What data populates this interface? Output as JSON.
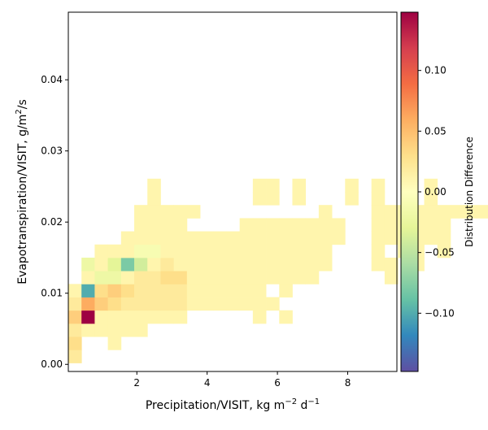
{
  "chart_data": {
    "type": "heatmap",
    "xlabel": "Precipitation/VISIT,  kg m",
    "xlabel_sup1": "−2",
    "xlabel_mid": " d",
    "xlabel_sup2": "−1",
    "ylabel": "Evapotranspiration/VISIT,  g/m",
    "ylabel_sup": "2",
    "ylabel_tail": "/s",
    "colorbar_label": "Distribution Difference",
    "colormap": "Spectral_r",
    "xlim": [
      0.05,
      9.4
    ],
    "ylim": [
      -0.001,
      0.0495
    ],
    "clim": [
      -0.148,
      0.148
    ],
    "xticks": [
      {
        "v": 2,
        "label": "2"
      },
      {
        "v": 4,
        "label": "4"
      },
      {
        "v": 6,
        "label": "6"
      },
      {
        "v": 8,
        "label": "8"
      }
    ],
    "yticks": [
      {
        "v": 0.0,
        "label": "0.00"
      },
      {
        "v": 0.01,
        "label": "0.01"
      },
      {
        "v": 0.02,
        "label": "0.02"
      },
      {
        "v": 0.03,
        "label": "0.03"
      },
      {
        "v": 0.04,
        "label": "0.04"
      }
    ],
    "cticks": [
      {
        "v": 0.1,
        "label": "0.10"
      },
      {
        "v": 0.05,
        "label": "0.05"
      },
      {
        "v": 0.0,
        "label": "0.00"
      },
      {
        "v": -0.05,
        "label": "−0.05"
      },
      {
        "v": -0.1,
        "label": "−0.10"
      }
    ],
    "bin_x0": 0.05,
    "bin_dx": 0.375,
    "bin_y0": 0.0002,
    "bin_dy": 0.00185,
    "rows": [
      {
        "j": 0,
        "cells": [
          [
            0,
            0.02
          ]
        ]
      },
      {
        "j": 1,
        "cells": [
          [
            0,
            0.03
          ],
          [
            3,
            0.01
          ]
        ]
      },
      {
        "j": 2,
        "cells": [
          [
            0,
            0.02
          ],
          [
            1,
            0.01
          ],
          [
            2,
            0.01
          ],
          [
            3,
            0.01
          ],
          [
            4,
            0.01
          ],
          [
            5,
            0.01
          ]
        ]
      },
      {
        "j": 3,
        "cells": [
          [
            0,
            0.04
          ],
          [
            1,
            0.148
          ],
          [
            2,
            0.01
          ],
          [
            3,
            0.01
          ],
          [
            4,
            0.01
          ],
          [
            5,
            0.01
          ],
          [
            6,
            0.01
          ],
          [
            7,
            0.01
          ],
          [
            8,
            0.01
          ],
          [
            14,
            0.01
          ],
          [
            16,
            0.01
          ]
        ]
      },
      {
        "j": 4,
        "cells": [
          [
            0,
            0.02
          ],
          [
            1,
            0.06
          ],
          [
            2,
            0.04
          ],
          [
            3,
            0.03
          ],
          [
            4,
            0.02
          ],
          [
            5,
            0.02
          ],
          [
            6,
            0.02
          ],
          [
            7,
            0.02
          ],
          [
            8,
            0.02
          ],
          [
            9,
            0.01
          ],
          [
            10,
            0.01
          ],
          [
            11,
            0.01
          ],
          [
            12,
            0.01
          ],
          [
            13,
            0.01
          ],
          [
            14,
            0.01
          ],
          [
            15,
            0.01
          ]
        ]
      },
      {
        "j": 5,
        "cells": [
          [
            0,
            0.01
          ],
          [
            1,
            -0.1
          ],
          [
            2,
            0.03
          ],
          [
            3,
            0.04
          ],
          [
            4,
            0.03
          ],
          [
            5,
            0.02
          ],
          [
            6,
            0.02
          ],
          [
            7,
            0.02
          ],
          [
            8,
            0.02
          ],
          [
            9,
            0.01
          ],
          [
            10,
            0.01
          ],
          [
            11,
            0.01
          ],
          [
            12,
            0.01
          ],
          [
            13,
            0.01
          ],
          [
            14,
            0.01
          ],
          [
            16,
            0.01
          ]
        ]
      },
      {
        "j": 6,
        "cells": [
          [
            1,
            0.01
          ],
          [
            2,
            -0.02
          ],
          [
            3,
            -0.02
          ],
          [
            4,
            0.01
          ],
          [
            5,
            0.02
          ],
          [
            6,
            0.02
          ],
          [
            7,
            0.03
          ],
          [
            8,
            0.03
          ],
          [
            9,
            0.01
          ],
          [
            10,
            0.01
          ],
          [
            11,
            0.01
          ],
          [
            12,
            0.01
          ],
          [
            13,
            0.01
          ],
          [
            14,
            0.01
          ],
          [
            15,
            0.01
          ],
          [
            16,
            0.01
          ],
          [
            17,
            0.01
          ],
          [
            18,
            0.01
          ],
          [
            24,
            0.01
          ]
        ]
      },
      {
        "j": 7,
        "cells": [
          [
            1,
            -0.02
          ],
          [
            2,
            0.01
          ],
          [
            3,
            -0.03
          ],
          [
            4,
            -0.08
          ],
          [
            5,
            -0.04
          ],
          [
            6,
            0.01
          ],
          [
            7,
            0.02
          ],
          [
            8,
            0.01
          ],
          [
            9,
            0.01
          ],
          [
            10,
            0.01
          ],
          [
            11,
            0.01
          ],
          [
            12,
            0.01
          ],
          [
            13,
            0.01
          ],
          [
            14,
            0.01
          ],
          [
            15,
            0.01
          ],
          [
            16,
            0.01
          ],
          [
            17,
            0.01
          ],
          [
            18,
            0.01
          ],
          [
            19,
            0.01
          ],
          [
            23,
            0.01
          ],
          [
            24,
            0.01
          ],
          [
            26,
            0.01
          ]
        ]
      },
      {
        "j": 8,
        "cells": [
          [
            2,
            0.01
          ],
          [
            3,
            0.01
          ],
          [
            4,
            0.01
          ],
          [
            5,
            -0.01
          ],
          [
            6,
            -0.01
          ],
          [
            7,
            0.01
          ],
          [
            8,
            0.01
          ],
          [
            9,
            0.01
          ],
          [
            10,
            0.01
          ],
          [
            11,
            0.01
          ],
          [
            12,
            0.01
          ],
          [
            13,
            0.01
          ],
          [
            14,
            0.01
          ],
          [
            15,
            0.01
          ],
          [
            16,
            0.01
          ],
          [
            17,
            0.01
          ],
          [
            18,
            0.01
          ],
          [
            19,
            0.01
          ],
          [
            23,
            0.01
          ],
          [
            25,
            0.01
          ],
          [
            26,
            0.01
          ],
          [
            28,
            0.01
          ]
        ]
      },
      {
        "j": 9,
        "cells": [
          [
            4,
            0.01
          ],
          [
            5,
            0.01
          ],
          [
            6,
            0.01
          ],
          [
            7,
            0.01
          ],
          [
            8,
            0.01
          ],
          [
            9,
            0.01
          ],
          [
            10,
            0.01
          ],
          [
            11,
            0.01
          ],
          [
            12,
            0.01
          ],
          [
            13,
            0.01
          ],
          [
            14,
            0.01
          ],
          [
            15,
            0.01
          ],
          [
            16,
            0.01
          ],
          [
            17,
            0.01
          ],
          [
            18,
            0.01
          ],
          [
            19,
            0.01
          ],
          [
            20,
            0.01
          ],
          [
            23,
            0.01
          ],
          [
            24,
            0.01
          ],
          [
            25,
            0.01
          ],
          [
            26,
            0.01
          ],
          [
            27,
            0.01
          ],
          [
            28,
            0.01
          ]
        ]
      },
      {
        "j": 10,
        "cells": [
          [
            5,
            0.01
          ],
          [
            6,
            0.01
          ],
          [
            7,
            0.01
          ],
          [
            8,
            0.01
          ],
          [
            13,
            0.01
          ],
          [
            14,
            0.01
          ],
          [
            15,
            0.01
          ],
          [
            16,
            0.01
          ],
          [
            17,
            0.01
          ],
          [
            18,
            0.01
          ],
          [
            19,
            0.01
          ],
          [
            20,
            0.01
          ],
          [
            23,
            0.01
          ],
          [
            24,
            0.01
          ],
          [
            25,
            0.01
          ],
          [
            26,
            0.01
          ],
          [
            27,
            0.01
          ],
          [
            28,
            0.01
          ]
        ]
      },
      {
        "j": 11,
        "cells": [
          [
            5,
            0.01
          ],
          [
            6,
            0.01
          ],
          [
            7,
            0.01
          ],
          [
            8,
            0.01
          ],
          [
            9,
            0.01
          ],
          [
            19,
            0.01
          ],
          [
            23,
            0.01
          ],
          [
            24,
            0.01
          ],
          [
            25,
            0.01
          ],
          [
            26,
            0.01
          ],
          [
            27,
            0.01
          ],
          [
            28,
            0.01
          ],
          [
            29,
            0.01
          ],
          [
            30,
            0.01
          ],
          [
            31,
            0.01
          ]
        ]
      },
      {
        "j": 12,
        "cells": [
          [
            6,
            0.01
          ],
          [
            14,
            0.01
          ],
          [
            15,
            0.01
          ],
          [
            17,
            0.01
          ],
          [
            21,
            0.01
          ],
          [
            23,
            0.01
          ],
          [
            27,
            0.01
          ]
        ]
      },
      {
        "j": 13,
        "cells": [
          [
            6,
            0.01
          ],
          [
            14,
            0.01
          ],
          [
            15,
            0.01
          ],
          [
            17,
            0.01
          ],
          [
            21,
            0.01
          ],
          [
            23,
            0.01
          ],
          [
            27,
            0.01
          ]
        ]
      }
    ]
  }
}
